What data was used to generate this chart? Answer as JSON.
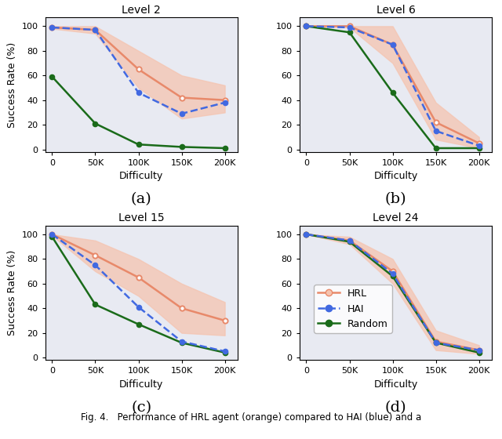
{
  "x_ticks": [
    0,
    50000,
    100000,
    150000,
    200000
  ],
  "x_tick_labels": [
    "0",
    "50K",
    "100K",
    "150K",
    "200K"
  ],
  "x_values": [
    0,
    50000,
    100000,
    150000,
    200000
  ],
  "panels": [
    {
      "title": "Level 2",
      "label": "(a)",
      "hrl_mean": [
        99,
        97,
        65,
        42,
        40
      ],
      "hrl_upper": [
        100,
        100,
        80,
        60,
        52
      ],
      "hrl_lower": [
        98,
        94,
        50,
        25,
        30
      ],
      "hai_mean": [
        99,
        97,
        46,
        29,
        38
      ],
      "random_mean": [
        59,
        21,
        4,
        2,
        1
      ]
    },
    {
      "title": "Level 6",
      "label": "(b)",
      "hrl_mean": [
        100,
        100,
        85,
        22,
        5
      ],
      "hrl_upper": [
        100,
        100,
        100,
        38,
        10
      ],
      "hrl_lower": [
        100,
        99,
        70,
        8,
        1
      ],
      "hai_mean": [
        100,
        99,
        85,
        15,
        3
      ],
      "random_mean": [
        100,
        95,
        46,
        1,
        1
      ]
    },
    {
      "title": "Level 15",
      "label": "(c)",
      "hrl_mean": [
        100,
        83,
        65,
        40,
        30
      ],
      "hrl_upper": [
        100,
        95,
        80,
        60,
        45
      ],
      "hrl_lower": [
        99,
        70,
        50,
        20,
        18
      ],
      "hai_mean": [
        100,
        75,
        41,
        13,
        5
      ],
      "random_mean": [
        98,
        43,
        27,
        12,
        4
      ]
    },
    {
      "title": "Level 24",
      "label": "(d)",
      "hrl_mean": [
        100,
        95,
        70,
        13,
        6
      ],
      "hrl_upper": [
        100,
        98,
        80,
        22,
        10
      ],
      "hrl_lower": [
        100,
        92,
        60,
        6,
        3
      ],
      "hai_mean": [
        100,
        95,
        68,
        12,
        6
      ],
      "random_mean": [
        100,
        94,
        66,
        12,
        4
      ]
    }
  ],
  "hrl_color": "#E8896A",
  "hrl_fill": "#F5C4B0",
  "hai_color": "#4169E1",
  "random_color": "#1A6B1A",
  "bg_color": "#E8EAF2",
  "ylabel": "Success Rate (%)",
  "xlabel": "Difficulty",
  "ylim": [
    -2,
    107
  ],
  "yticks": [
    0,
    20,
    40,
    60,
    80,
    100
  ],
  "ytick_labels": [
    "0",
    "20",
    "40",
    "60",
    "80",
    "100"
  ]
}
